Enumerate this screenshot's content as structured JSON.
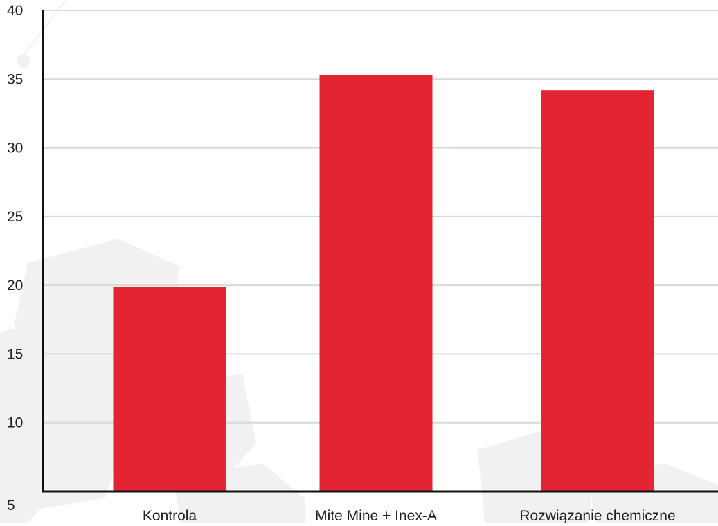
{
  "chart_data": {
    "type": "bar",
    "categories": [
      "Kontrola",
      "Mite Mine + Inex-A",
      "Rozwiązanie chemiczne"
    ],
    "values": [
      19.9,
      35.3,
      34.2
    ],
    "ylim": [
      5,
      40
    ],
    "yticks": [
      5,
      10,
      15,
      20,
      25,
      30,
      35,
      40
    ],
    "grid": true,
    "colors": {
      "bar": "#e32432",
      "grid": "#d8d8d8",
      "axis": "#111111",
      "watermark": "#f1f1f1"
    }
  }
}
